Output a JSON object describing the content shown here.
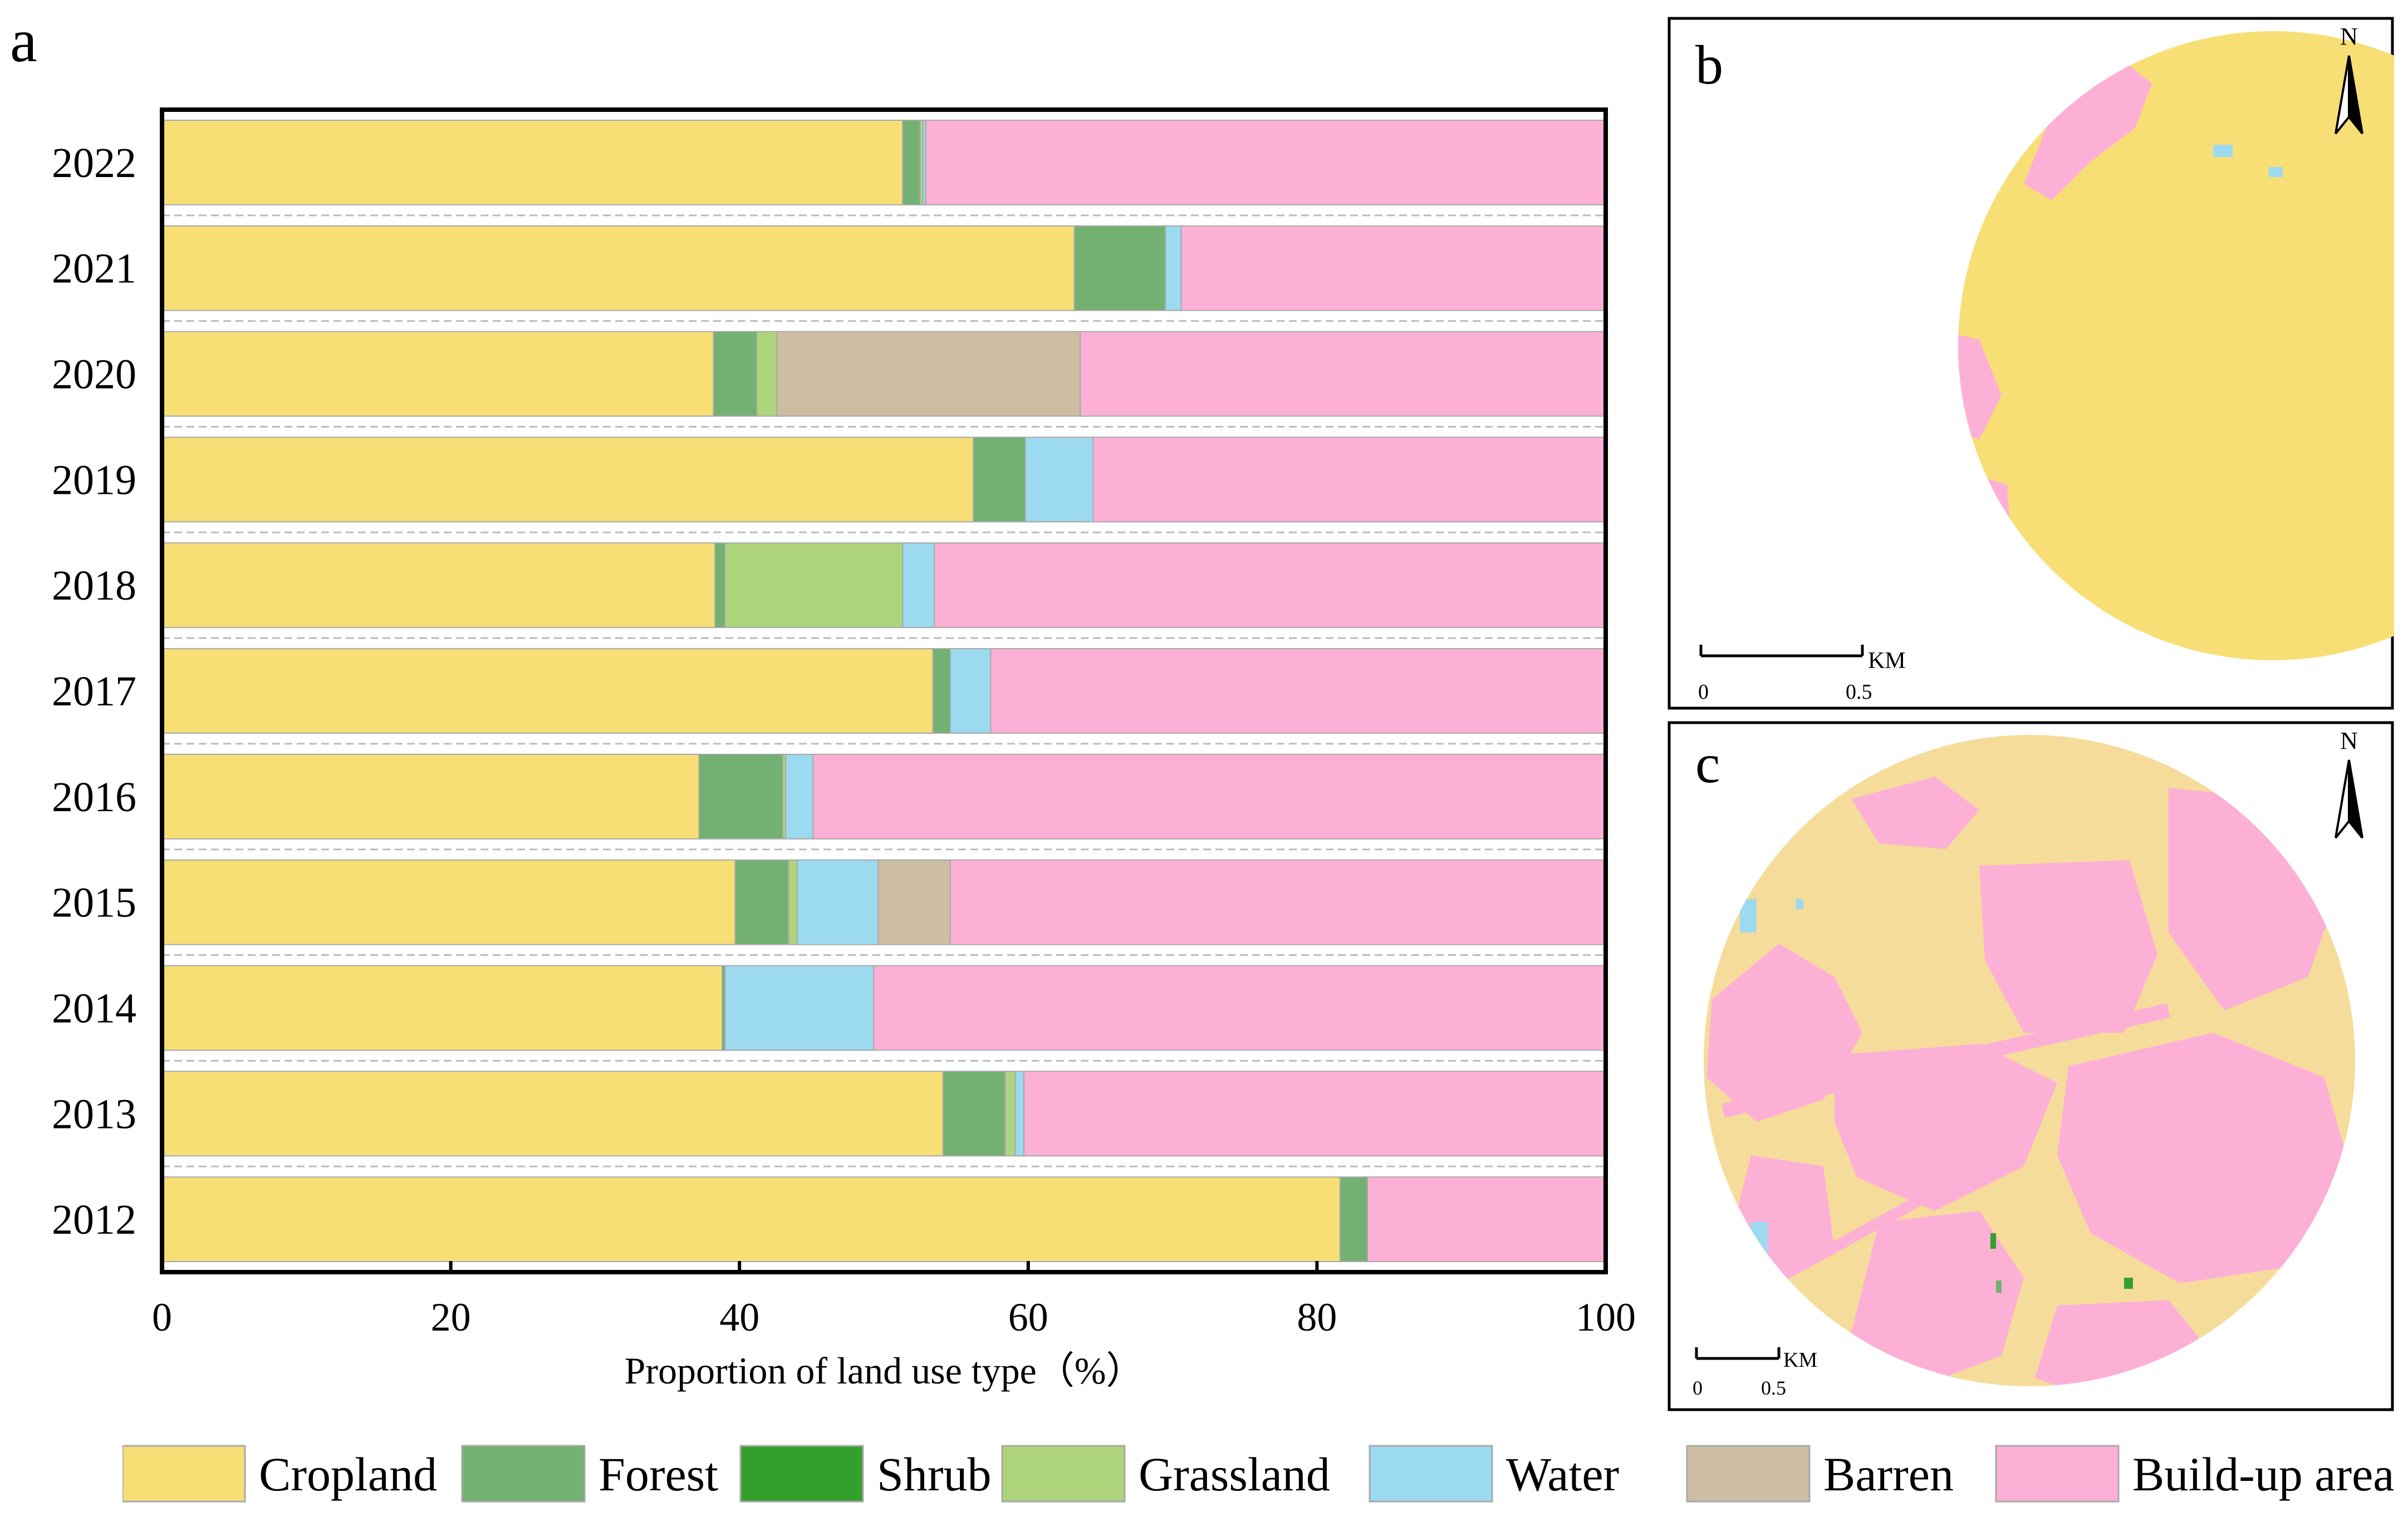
{
  "panel_labels": {
    "a": "a",
    "b": "b",
    "c": "c"
  },
  "colors": {
    "Cropland": "#F7DF76",
    "Forest": "#73B173",
    "Shrub": "#33A02C",
    "Grassland": "#AED47C",
    "Water": "#9CDAF0",
    "Barren": "#CDBDA3",
    "Build-up area": "#FDB0D6"
  },
  "chart_data": {
    "type": "bar",
    "orientation": "horizontal",
    "stacked": true,
    "categories": [
      "2022",
      "2021",
      "2020",
      "2019",
      "2018",
      "2017",
      "2016",
      "2015",
      "2014",
      "2013",
      "2012"
    ],
    "series": [
      {
        "name": "Cropland",
        "values": [
          51.3,
          63.2,
          38.2,
          56.2,
          38.3,
          53.4,
          37.2,
          39.7,
          38.8,
          54.1,
          81.6
        ]
      },
      {
        "name": "Forest",
        "values": [
          1.2,
          6.3,
          3.0,
          3.6,
          0.7,
          1.2,
          5.8,
          3.7,
          0.2,
          4.3,
          1.9
        ]
      },
      {
        "name": "Shrub",
        "values": [
          0,
          0,
          0,
          0,
          0,
          0,
          0,
          0,
          0,
          0,
          0
        ]
      },
      {
        "name": "Grassland",
        "values": [
          0.2,
          0,
          1.4,
          0,
          12.3,
          0,
          0.2,
          0.6,
          0,
          0.7,
          0
        ]
      },
      {
        "name": "Water",
        "values": [
          0.2,
          1.1,
          0,
          4.7,
          2.2,
          2.8,
          1.9,
          5.6,
          10.3,
          0.6,
          0
        ]
      },
      {
        "name": "Barren",
        "values": [
          0,
          0,
          21.0,
          0,
          0,
          0,
          0,
          5.0,
          0,
          0,
          0
        ]
      },
      {
        "name": "Build-up area",
        "values": [
          47.1,
          29.4,
          36.4,
          35.5,
          46.5,
          42.6,
          54.9,
          45.4,
          50.7,
          40.3,
          16.5
        ]
      }
    ],
    "xlabel": "Proportion of land use type（%）",
    "ylabel": "",
    "xlim": [
      0,
      100
    ],
    "xticks": [
      0,
      20,
      40,
      60,
      80,
      100
    ],
    "legend_position": "bottom",
    "legend": [
      "Cropland",
      "Forest",
      "Shrub",
      "Grassland",
      "Water",
      "Barren",
      "Build-up area"
    ]
  },
  "maps": {
    "b": {
      "north_label": "N",
      "scale_unit": "KM",
      "scale_start": "0",
      "scale_end": "0.5"
    },
    "c": {
      "north_label": "N",
      "scale_unit": "KM",
      "scale_start": "0",
      "scale_end": "0.5"
    }
  }
}
